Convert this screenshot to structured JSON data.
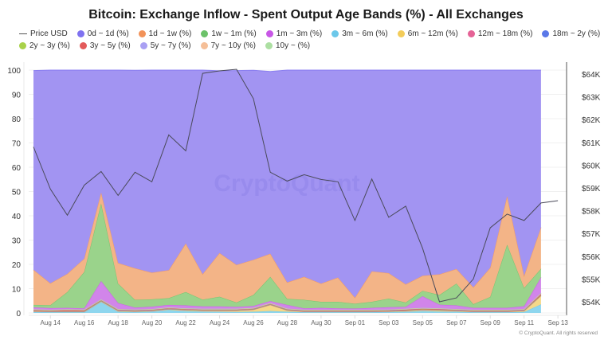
{
  "title": "Bitcoin: Exchange Inflow - Spent Output Age Bands (%) - All Exchanges",
  "copyright": "© CryptoQuant. All rights reserved",
  "watermark": "CryptoQuant",
  "legend": [
    {
      "label": "Price USD",
      "type": "line",
      "color": "#444444"
    },
    {
      "label": "0d ~ 1d (%)",
      "type": "dot",
      "color": "#7f72f0"
    },
    {
      "label": "1d ~ 1w (%)",
      "type": "dot",
      "color": "#f2935a"
    },
    {
      "label": "1w ~ 1m (%)",
      "type": "dot",
      "color": "#6cc26a"
    },
    {
      "label": "1m ~ 3m (%)",
      "type": "dot",
      "color": "#c857e6"
    },
    {
      "label": "3m ~ 6m (%)",
      "type": "dot",
      "color": "#6cc8ea"
    },
    {
      "label": "6m ~ 12m (%)",
      "type": "dot",
      "color": "#f3cc5a"
    },
    {
      "label": "12m ~ 18m (%)",
      "type": "dot",
      "color": "#e56396"
    },
    {
      "label": "18m ~ 2y (%)",
      "type": "dot",
      "color": "#5a78e8"
    },
    {
      "label": "2y ~ 3y (%)",
      "type": "dot",
      "color": "#a9d24a"
    },
    {
      "label": "3y ~ 5y (%)",
      "type": "dot",
      "color": "#e35a5a"
    },
    {
      "label": "5y ~ 7y (%)",
      "type": "dot",
      "color": "#a9a0f3"
    },
    {
      "label": "7y ~ 10y (%)",
      "type": "dot",
      "color": "#f5bf98"
    },
    {
      "label": "10y ~ (%)",
      "type": "dot",
      "color": "#acdfa2"
    }
  ],
  "chart_data": {
    "type": "area",
    "stacked": true,
    "title": "Bitcoin: Exchange Inflow - Spent Output Age Bands (%) - All Exchanges",
    "xlabel": "",
    "ylabel": "",
    "y_left_ticks": [
      "0",
      "10",
      "20",
      "30",
      "40",
      "50",
      "60",
      "70",
      "80",
      "90",
      "100"
    ],
    "y_left_range": [
      0,
      100
    ],
    "y_right_ticks": [
      "$54K",
      "$55K",
      "$56K",
      "$57K",
      "$58K",
      "$59K",
      "$60K",
      "$61K",
      "$62K",
      "$63K",
      "$64K"
    ],
    "y_right_range": [
      53500,
      64500
    ],
    "x_ticks": [
      "Aug 14",
      "Aug 16",
      "Aug 18",
      "Aug 20",
      "Aug 22",
      "Aug 24",
      "Aug 26",
      "Aug 28",
      "Aug 30",
      "Sep 01",
      "Sep 03",
      "Sep 05",
      "Sep 07",
      "Sep 09",
      "Sep 11",
      "Sep 13"
    ],
    "grid": true,
    "legend_position": "top",
    "x": [
      "Aug 13",
      "Aug 14",
      "Aug 15",
      "Aug 16",
      "Aug 17",
      "Aug 18",
      "Aug 19",
      "Aug 20",
      "Aug 21",
      "Aug 22",
      "Aug 23",
      "Aug 24",
      "Aug 25",
      "Aug 26",
      "Aug 27",
      "Aug 28",
      "Aug 29",
      "Aug 30",
      "Aug 31",
      "Sep 01",
      "Sep 02",
      "Sep 03",
      "Sep 04",
      "Sep 05",
      "Sep 06",
      "Sep 07",
      "Sep 08",
      "Sep 09",
      "Sep 10",
      "Sep 11",
      "Sep 12"
    ],
    "series": [
      {
        "name": "3m ~ 6m (%)",
        "color": "#6cc8ea",
        "values": [
          0.4,
          0.3,
          0.3,
          0.3,
          4.5,
          0.5,
          0.4,
          0.6,
          1.2,
          0.8,
          0.6,
          0.5,
          0.4,
          0.5,
          0.8,
          0.5,
          0.3,
          0.3,
          0.3,
          0.3,
          0.3,
          0.4,
          0.5,
          0.8,
          0.6,
          0.5,
          0.3,
          0.3,
          0.3,
          0.4,
          3.5
        ]
      },
      {
        "name": "6m ~ 12m (%)",
        "color": "#f3cc5a",
        "values": [
          0.2,
          0.2,
          0.2,
          0.2,
          0.3,
          0.3,
          0.2,
          0.2,
          0.3,
          0.3,
          0.3,
          0.4,
          0.5,
          0.8,
          2.5,
          0.5,
          0.2,
          0.2,
          0.2,
          0.2,
          0.2,
          0.2,
          0.3,
          0.4,
          0.4,
          0.3,
          0.2,
          0.2,
          0.2,
          0.4,
          3.5
        ]
      },
      {
        "name": "12m ~ 18m (%)",
        "color": "#e56396",
        "values": [
          0.1,
          0.1,
          0.1,
          0.1,
          0.1,
          0.1,
          0.1,
          0.1,
          0.1,
          0.1,
          0.1,
          0.1,
          0.1,
          0.1,
          0.1,
          0.1,
          0.1,
          0.1,
          0.1,
          0.1,
          0.1,
          0.1,
          0.1,
          0.1,
          0.1,
          0.1,
          0.1,
          0.1,
          0.1,
          0.1,
          0.1
        ]
      },
      {
        "name": "18m ~ 2y (%)",
        "color": "#5a78e8",
        "values": [
          0.1,
          0.1,
          0.1,
          0.1,
          0.1,
          0.1,
          0.1,
          0.1,
          0.1,
          0.1,
          0.1,
          0.1,
          0.1,
          0.1,
          0.1,
          0.1,
          0.1,
          0.1,
          0.1,
          0.1,
          0.1,
          0.1,
          0.1,
          0.1,
          0.1,
          0.1,
          0.1,
          0.1,
          0.1,
          0.1,
          0.1
        ]
      },
      {
        "name": "2y ~ 3y (%)",
        "color": "#a9d24a",
        "values": [
          0.1,
          0.1,
          0.1,
          0.1,
          0.1,
          0.1,
          0.1,
          0.1,
          0.1,
          0.1,
          0.1,
          0.1,
          0.1,
          0.1,
          0.1,
          0.1,
          0.1,
          0.1,
          0.1,
          0.1,
          0.1,
          0.1,
          0.1,
          0.1,
          0.1,
          0.1,
          0.1,
          0.1,
          0.1,
          0.1,
          0.1
        ]
      },
      {
        "name": "3y ~ 5y (%)",
        "color": "#e35a5a",
        "values": [
          0.3,
          0.2,
          0.4,
          0.3,
          0.2,
          0.2,
          0.2,
          0.2,
          0.2,
          0.2,
          0.2,
          0.2,
          0.2,
          0.2,
          0.2,
          0.2,
          0.2,
          0.2,
          0.2,
          0.2,
          0.2,
          0.2,
          0.3,
          0.3,
          0.3,
          0.2,
          0.2,
          0.2,
          0.2,
          0.2,
          0.6
        ]
      },
      {
        "name": "5y ~ 7y (%)",
        "color": "#a9a0f3",
        "values": [
          0.1,
          0.1,
          0.1,
          0.1,
          0.1,
          0.1,
          0.1,
          0.1,
          0.1,
          0.1,
          0.1,
          0.1,
          0.1,
          0.1,
          0.1,
          0.1,
          0.1,
          0.1,
          0.1,
          0.1,
          0.1,
          0.1,
          0.1,
          0.1,
          0.1,
          0.1,
          0.1,
          0.1,
          0.1,
          0.1,
          0.1
        ]
      },
      {
        "name": "7y ~ 10y (%)",
        "color": "#f5bf98",
        "values": [
          0.1,
          0.1,
          0.1,
          0.1,
          0.1,
          0.1,
          0.1,
          0.1,
          0.1,
          0.1,
          0.1,
          0.1,
          0.1,
          0.1,
          0.1,
          0.1,
          0.1,
          0.1,
          0.1,
          0.1,
          0.1,
          0.1,
          0.1,
          0.1,
          0.1,
          0.1,
          0.1,
          0.1,
          0.1,
          0.1,
          0.1
        ]
      },
      {
        "name": "10y ~ (%)",
        "color": "#acdfa2",
        "values": [
          0.1,
          0.1,
          0.1,
          0.1,
          0.1,
          0.1,
          0.1,
          0.1,
          0.1,
          0.1,
          0.1,
          0.1,
          0.1,
          0.1,
          0.1,
          0.1,
          0.1,
          0.1,
          0.1,
          0.1,
          0.1,
          0.1,
          0.1,
          0.1,
          0.1,
          0.1,
          0.1,
          0.1,
          0.1,
          0.1,
          0.1
        ]
      },
      {
        "name": "1m ~ 3m (%)",
        "color": "#c857e6",
        "values": [
          0.8,
          0.7,
          0.6,
          0.5,
          7.5,
          2.5,
          0.8,
          1.0,
          1.0,
          1.2,
          1.0,
          1.0,
          0.8,
          0.8,
          0.8,
          1.5,
          0.6,
          0.8,
          0.6,
          0.5,
          0.8,
          1.0,
          0.8,
          4.8,
          1.5,
          1.5,
          0.8,
          0.8,
          0.8,
          1.2,
          6.5
        ]
      },
      {
        "name": "1w ~ 1m (%)",
        "color": "#6cc26a",
        "values": [
          1.0,
          1.2,
          6.5,
          15.0,
          32.0,
          8.0,
          3.2,
          3.0,
          2.8,
          5.5,
          2.8,
          4.0,
          1.8,
          4.5,
          10.0,
          2.5,
          3.5,
          2.5,
          2.7,
          2.0,
          2.5,
          3.5,
          1.8,
          2.2,
          4.0,
          9.0,
          1.5,
          4.5,
          26.0,
          7.5,
          3.5
        ]
      },
      {
        "name": "1d ~ 1w (%)",
        "color": "#f2935a",
        "values": [
          14.5,
          9.0,
          7.5,
          5.5,
          4.5,
          8.5,
          13.0,
          11.0,
          11.5,
          20.0,
          10.5,
          18.0,
          15.5,
          14.5,
          9.5,
          6.8,
          9.5,
          7.5,
          10.0,
          2.5,
          12.5,
          10.5,
          7.5,
          6.2,
          8.5,
          6.0,
          7.0,
          12.0,
          20.0,
          5.0,
          17.0
        ]
      },
      {
        "name": "0d ~ 1d (%)",
        "color": "#7f72f0",
        "values": [
          82.0,
          88.0,
          84.0,
          78.0,
          50.5,
          79.5,
          81.5,
          83.5,
          83.0,
          71.5,
          84.0,
          75.0,
          80.0,
          78.0,
          75.0,
          87.5,
          85.5,
          88.5,
          85.9,
          94.1,
          83.5,
          84.0,
          88.4,
          84.9,
          84.3,
          82.5,
          89.8,
          81.7,
          52.5,
          84.9,
          64.9
        ]
      }
    ],
    "price_series": {
      "name": "Price USD",
      "axis": "right",
      "x": [
        "Aug 13",
        "Aug 14",
        "Aug 15",
        "Aug 16",
        "Aug 17",
        "Aug 18",
        "Aug 19",
        "Aug 20",
        "Aug 21",
        "Aug 22",
        "Aug 23",
        "Aug 24",
        "Aug 25",
        "Aug 26",
        "Aug 27",
        "Aug 28",
        "Aug 29",
        "Aug 30",
        "Aug 31",
        "Sep 01",
        "Sep 02",
        "Sep 03",
        "Sep 04",
        "Sep 05",
        "Sep 06",
        "Sep 07",
        "Sep 08",
        "Sep 09",
        "Sep 10",
        "Sep 11",
        "Sep 12",
        "Sep 13"
      ],
      "values": [
        60800,
        58950,
        57800,
        59120,
        59720,
        58670,
        59690,
        59270,
        61330,
        60630,
        64030,
        64140,
        64210,
        62920,
        59690,
        59300,
        59580,
        59370,
        59270,
        57570,
        59390,
        57710,
        58200,
        56350,
        54000,
        54170,
        55000,
        57250,
        57850,
        57570,
        58340,
        58440
      ]
    }
  }
}
